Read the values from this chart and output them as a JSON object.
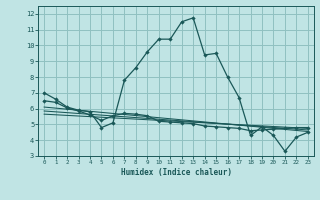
{
  "background_color": "#c0e4e4",
  "grid_color": "#90c0c0",
  "line_color": "#1a5858",
  "xlabel": "Humidex (Indice chaleur)",
  "xlim": [
    -0.5,
    23.5
  ],
  "ylim": [
    3,
    12.5
  ],
  "yticks": [
    3,
    4,
    5,
    6,
    7,
    8,
    9,
    10,
    11,
    12
  ],
  "xticks": [
    0,
    1,
    2,
    3,
    4,
    5,
    6,
    7,
    8,
    9,
    10,
    11,
    12,
    13,
    14,
    15,
    16,
    17,
    18,
    19,
    20,
    21,
    22,
    23
  ],
  "line1_x": [
    0,
    1,
    2,
    3,
    4,
    5,
    6,
    7,
    8,
    9,
    10,
    11,
    12,
    13,
    14,
    15,
    16,
    17,
    18,
    19,
    20,
    21,
    22,
    23
  ],
  "line1_y": [
    7.0,
    6.6,
    6.1,
    5.9,
    5.8,
    4.8,
    5.1,
    7.8,
    8.6,
    9.6,
    10.4,
    10.4,
    11.5,
    11.75,
    9.4,
    9.5,
    8.0,
    6.7,
    4.3,
    4.85,
    4.3,
    3.3,
    4.2,
    4.5
  ],
  "line2_x": [
    0,
    1,
    2,
    3,
    4,
    5,
    6,
    7,
    8,
    9,
    10,
    11,
    12,
    13,
    14,
    15,
    16,
    17,
    18,
    19,
    20,
    21,
    22,
    23
  ],
  "line2_y": [
    6.5,
    6.4,
    6.05,
    5.85,
    5.6,
    5.25,
    5.55,
    5.7,
    5.65,
    5.55,
    5.2,
    5.15,
    5.1,
    5.05,
    4.9,
    4.85,
    4.8,
    4.75,
    4.6,
    4.65,
    4.7,
    4.75,
    4.8,
    4.8
  ],
  "line3_x": [
    0,
    23
  ],
  "line3_y": [
    6.1,
    4.55
  ],
  "line4_x": [
    0,
    23
  ],
  "line4_y": [
    5.85,
    4.65
  ],
  "line5_x": [
    0,
    23
  ],
  "line5_y": [
    5.65,
    4.75
  ]
}
